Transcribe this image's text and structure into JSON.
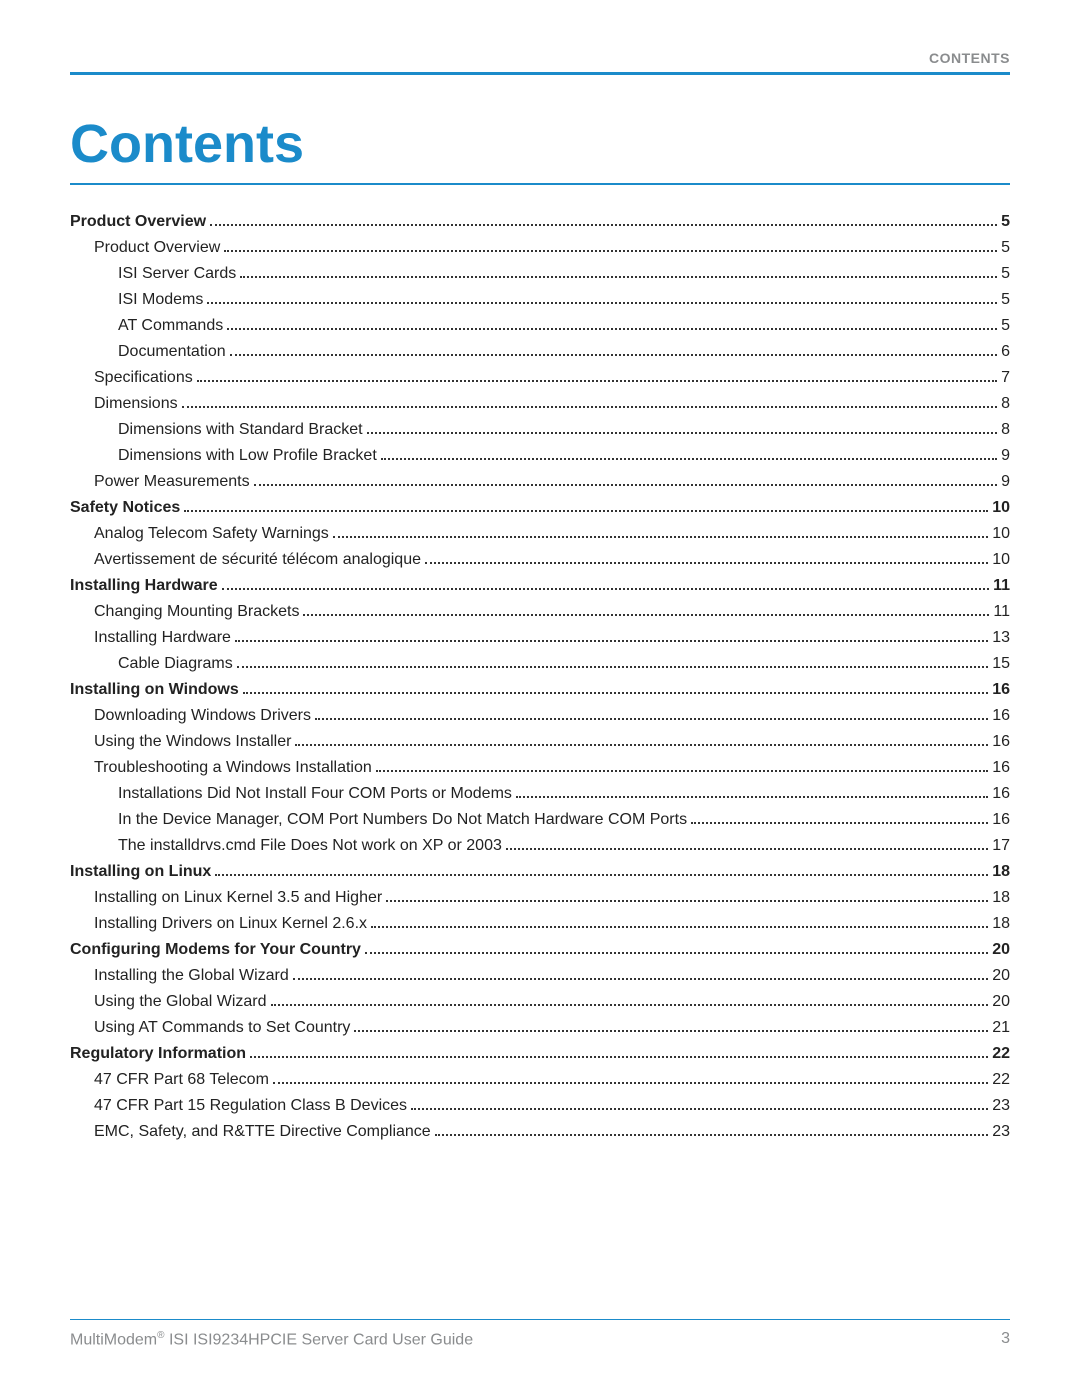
{
  "header": {
    "label": "CONTENTS"
  },
  "title": "Contents",
  "colors": {
    "accent": "#1b8bca",
    "muted": "#8a8c8e",
    "text": "#222222",
    "background": "#ffffff"
  },
  "toc": [
    {
      "label": "Product Overview",
      "page": "5",
      "level": 0,
      "bold": true
    },
    {
      "label": "Product Overview",
      "page": "5",
      "level": 1,
      "bold": false
    },
    {
      "label": "ISI Server Cards",
      "page": "5",
      "level": 2,
      "bold": false
    },
    {
      "label": "ISI Modems",
      "page": "5",
      "level": 2,
      "bold": false
    },
    {
      "label": "AT Commands",
      "page": "5",
      "level": 2,
      "bold": false
    },
    {
      "label": "Documentation",
      "page": "6",
      "level": 2,
      "bold": false
    },
    {
      "label": "Specifications",
      "page": "7",
      "level": 1,
      "bold": false
    },
    {
      "label": "Dimensions",
      "page": "8",
      "level": 1,
      "bold": false
    },
    {
      "label": "Dimensions with Standard Bracket",
      "page": "8",
      "level": 2,
      "bold": false
    },
    {
      "label": "Dimensions with Low Profile Bracket",
      "page": "9",
      "level": 2,
      "bold": false
    },
    {
      "label": "Power Measurements",
      "page": "9",
      "level": 1,
      "bold": false
    },
    {
      "label": "Safety Notices",
      "page": "10",
      "level": 0,
      "bold": true
    },
    {
      "label": "Analog Telecom Safety Warnings ",
      "page": "10",
      "level": 1,
      "bold": false
    },
    {
      "label": "Avertissement de sécurité télécom analogique ",
      "page": "10",
      "level": 1,
      "bold": false
    },
    {
      "label": "Installing Hardware",
      "page": "11",
      "level": 0,
      "bold": true
    },
    {
      "label": "Changing Mounting Brackets",
      "page": "11",
      "level": 1,
      "bold": false
    },
    {
      "label": "Installing Hardware",
      "page": "13",
      "level": 1,
      "bold": false
    },
    {
      "label": "Cable Diagrams",
      "page": "15",
      "level": 2,
      "bold": false
    },
    {
      "label": "Installing on Windows",
      "page": "16",
      "level": 0,
      "bold": true
    },
    {
      "label": "Downloading Windows Drivers",
      "page": "16",
      "level": 1,
      "bold": false
    },
    {
      "label": "Using the Windows Installer",
      "page": "16",
      "level": 1,
      "bold": false
    },
    {
      "label": "Troubleshooting a Windows Installation",
      "page": "16",
      "level": 1,
      "bold": false
    },
    {
      "label": "Installations Did Not Install Four COM Ports or Modems",
      "page": "16",
      "level": 2,
      "bold": false
    },
    {
      "label": "In the Device Manager, COM Port Numbers Do Not Match Hardware COM Ports",
      "page": "16",
      "level": 2,
      "bold": false
    },
    {
      "label": "The installdrvs.cmd File Does Not work on XP or 2003",
      "page": "17",
      "level": 2,
      "bold": false
    },
    {
      "label": "Installing on Linux",
      "page": "18",
      "level": 0,
      "bold": true
    },
    {
      "label": "Installing on Linux Kernel 3.5 and Higher",
      "page": "18",
      "level": 1,
      "bold": false
    },
    {
      "label": "Installing Drivers on Linux Kernel 2.6.x",
      "page": "18",
      "level": 1,
      "bold": false
    },
    {
      "label": "Configuring Modems for Your Country",
      "page": "20",
      "level": 0,
      "bold": true
    },
    {
      "label": "Installing the Global Wizard",
      "page": "20",
      "level": 1,
      "bold": false
    },
    {
      "label": "Using the Global Wizard",
      "page": "20",
      "level": 1,
      "bold": false
    },
    {
      "label": "Using AT Commands to Set Country",
      "page": "21",
      "level": 1,
      "bold": false
    },
    {
      "label": "Regulatory Information",
      "page": "22",
      "level": 0,
      "bold": true
    },
    {
      "label": "47 CFR Part 68 Telecom",
      "page": "22",
      "level": 1,
      "bold": false
    },
    {
      "label": "47 CFR Part 15 Regulation Class B Devices",
      "page": "23",
      "level": 1,
      "bold": false
    },
    {
      "label": "EMC, Safety, and R&TTE Directive Compliance ",
      "page": "23",
      "level": 1,
      "bold": false
    }
  ],
  "footer": {
    "product": "MultiModem",
    "rest": " ISI ISI9234HPCIE Server Card User Guide",
    "page_number": "3"
  }
}
